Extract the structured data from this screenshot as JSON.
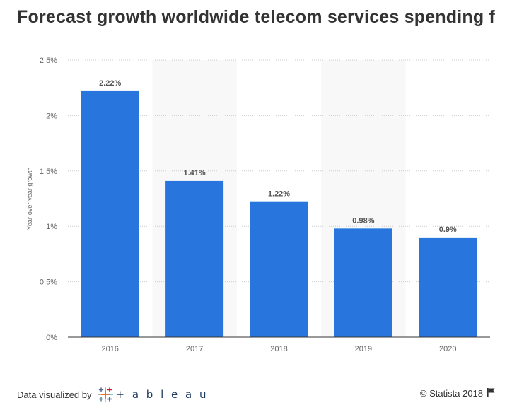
{
  "chart_data": {
    "type": "bar",
    "title": "Forecast growth worldwide telecom services spending f",
    "categories": [
      "2016",
      "2017",
      "2018",
      "2019",
      "2020"
    ],
    "values": [
      2.22,
      1.41,
      1.22,
      0.98,
      0.9
    ],
    "data_labels": [
      "2.22%",
      "1.41%",
      "1.22%",
      "0.98%",
      "0.9%"
    ],
    "xlabel": "",
    "ylabel": "Year-over-year growth",
    "ylim": [
      0,
      2.5
    ],
    "yticks": [
      0,
      0.5,
      1,
      1.5,
      2,
      2.5
    ],
    "ytick_labels": [
      "0%",
      "0.5%",
      "1%",
      "1.5%",
      "2%",
      "2.5%"
    ],
    "grid": true,
    "bar_color": "#2876dd",
    "band_color": "#f8f8f8"
  },
  "footer": {
    "visualized_by": "Data visualized by",
    "tableau_word": "+ a b l e a u",
    "copyright": "© Statista 2018"
  },
  "icons": {
    "tableau_logo": "tableau-logo-icon",
    "flag": "flag-icon"
  }
}
